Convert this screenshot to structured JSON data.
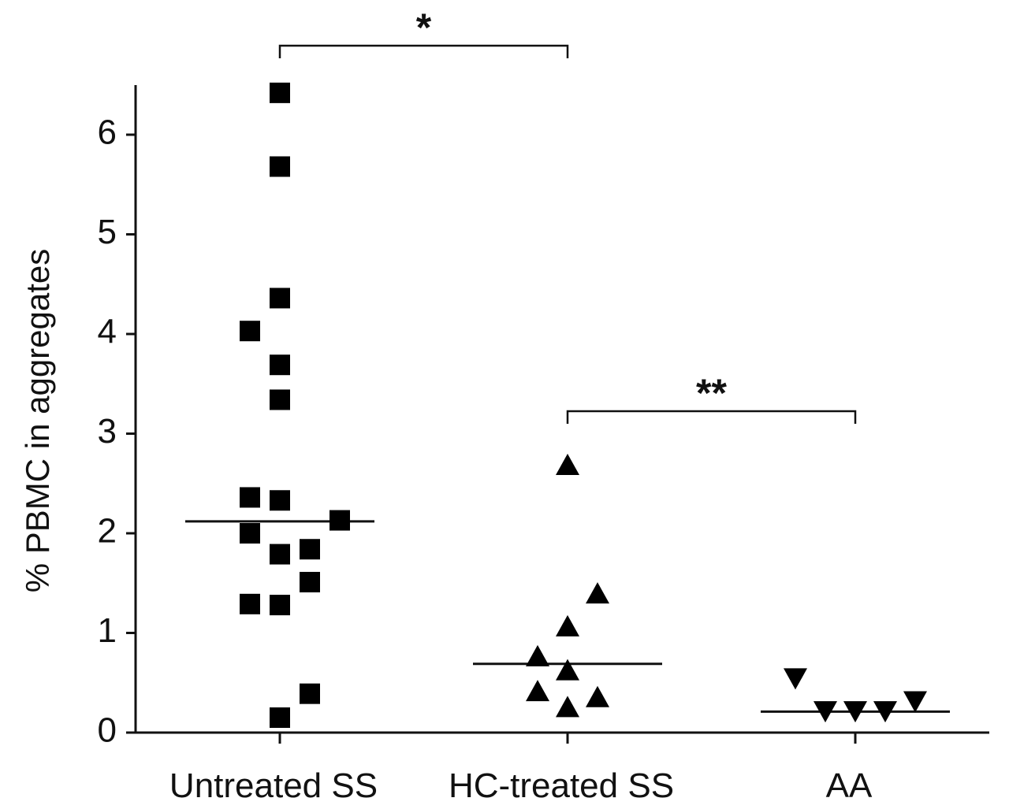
{
  "chart_data": {
    "type": "scatter",
    "title": "",
    "xlabel": "",
    "ylabel": "% PBMC in aggregates",
    "ylim": [
      0,
      6.5
    ],
    "yticks": [
      "0",
      "1",
      "2",
      "3",
      "4",
      "5",
      "6"
    ],
    "categories": [
      "Untreated SS",
      "HC-treated SS",
      "AA"
    ],
    "series": [
      {
        "name": "Untreated SS",
        "marker": "square",
        "median": 2.12,
        "points": [
          {
            "offset": 0,
            "value": 6.42
          },
          {
            "offset": 0,
            "value": 5.68
          },
          {
            "offset": 0,
            "value": 4.36
          },
          {
            "offset": -1,
            "value": 4.03
          },
          {
            "offset": 0,
            "value": 3.69
          },
          {
            "offset": 0,
            "value": 3.34
          },
          {
            "offset": -1,
            "value": 2.36
          },
          {
            "offset": 0,
            "value": 2.33
          },
          {
            "offset": 2,
            "value": 2.13
          },
          {
            "offset": -1,
            "value": 2.0
          },
          {
            "offset": 1,
            "value": 1.84
          },
          {
            "offset": 0,
            "value": 1.79
          },
          {
            "offset": 1,
            "value": 1.51
          },
          {
            "offset": -1,
            "value": 1.29
          },
          {
            "offset": 0,
            "value": 1.28
          },
          {
            "offset": 1,
            "value": 0.39
          },
          {
            "offset": 0,
            "value": 0.15
          }
        ]
      },
      {
        "name": "HC-treated SS",
        "marker": "triangle-up",
        "median": 0.69,
        "points": [
          {
            "offset": 0,
            "value": 2.68
          },
          {
            "offset": 1,
            "value": 1.39
          },
          {
            "offset": 0,
            "value": 1.06
          },
          {
            "offset": -1,
            "value": 0.76
          },
          {
            "offset": 0,
            "value": 0.62
          },
          {
            "offset": -1,
            "value": 0.41
          },
          {
            "offset": 1,
            "value": 0.35
          },
          {
            "offset": 0,
            "value": 0.25
          }
        ]
      },
      {
        "name": "AA",
        "marker": "triangle-down",
        "median": 0.21,
        "points": [
          {
            "offset": -2,
            "value": 0.55
          },
          {
            "offset": -1,
            "value": 0.22
          },
          {
            "offset": 0,
            "value": 0.22
          },
          {
            "offset": 1,
            "value": 0.22
          },
          {
            "offset": 2,
            "value": 0.32
          }
        ]
      }
    ],
    "significance": [
      {
        "from": 0,
        "to": 1,
        "label": "*"
      },
      {
        "from": 1,
        "to": 2,
        "label": "**"
      }
    ]
  }
}
